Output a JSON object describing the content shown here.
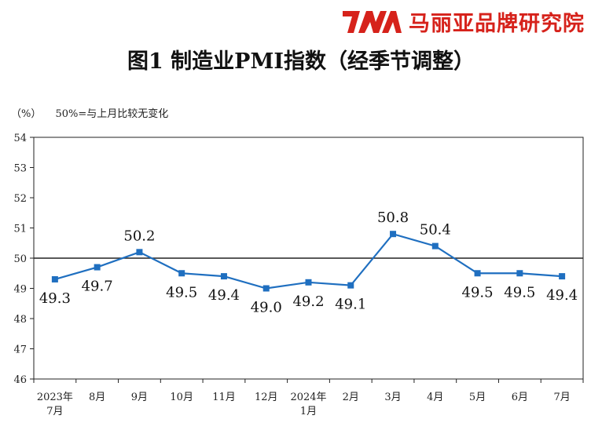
{
  "brand": {
    "logo_text": "7MA",
    "name": "马丽亚品牌研究院",
    "color": "#d6221b"
  },
  "chart_data": {
    "type": "line",
    "title": "图1  制造业PMI指数（经季节调整）",
    "unit_label": "（%）",
    "reference_note": "50%=与上月比较无变化",
    "reference_value": 50,
    "categories": [
      [
        "2023年",
        "7月"
      ],
      [
        "8月"
      ],
      [
        "9月"
      ],
      [
        "10月"
      ],
      [
        "11月"
      ],
      [
        "12月"
      ],
      [
        "2024年",
        "1月"
      ],
      [
        "2月"
      ],
      [
        "3月"
      ],
      [
        "4月"
      ],
      [
        "5月"
      ],
      [
        "6月"
      ],
      [
        "7月"
      ]
    ],
    "series": [
      {
        "values": [
          49.3,
          49.7,
          50.2,
          49.5,
          49.4,
          49.0,
          49.2,
          49.1,
          50.8,
          50.4,
          49.5,
          49.5,
          49.4
        ],
        "data_labels": [
          "49.3",
          "49.7",
          "50.2",
          "49.5",
          "49.4",
          "49.0",
          "49.2",
          "49.1",
          "50.8",
          "50.4",
          "49.5",
          "49.5",
          "49.4"
        ],
        "color": "#1f6fc0"
      }
    ],
    "ylim": [
      46,
      54
    ],
    "yticks": [
      46,
      47,
      48,
      49,
      50,
      51,
      52,
      53,
      54
    ],
    "ytick_labels": [
      "46",
      "47",
      "48",
      "49",
      "50",
      "51",
      "52",
      "53",
      "54"
    ],
    "grid": false,
    "legend": "none"
  }
}
